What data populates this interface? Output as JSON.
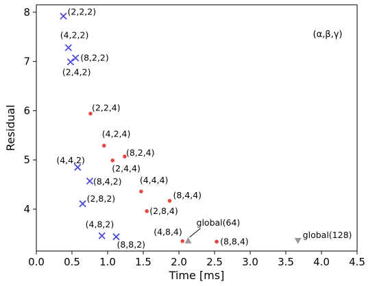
{
  "chart_data": {
    "type": "scatter",
    "title": "",
    "xlabel": "Time [ms]",
    "ylabel": "Residual",
    "xlim": [
      0.0,
      4.5
    ],
    "ylim": [
      3.15,
      8.15
    ],
    "xticks": [
      0.0,
      0.5,
      1.0,
      1.5,
      2.0,
      2.5,
      3.0,
      3.5,
      4.0,
      4.5
    ],
    "xtick_labels": [
      "0.0",
      "0.5",
      "1.0",
      "1.5",
      "2.0",
      "2.5",
      "3.0",
      "3.5",
      "4.0",
      "4.5"
    ],
    "yticks": [
      4,
      5,
      6,
      7,
      8
    ],
    "ytick_labels": [
      "4",
      "5",
      "6",
      "7",
      "8"
    ],
    "grid": false,
    "annotation": "(α,β,γ)",
    "colors": {
      "cross": "#4b4bd8",
      "dot": "#e8473f",
      "triangle": "#999999"
    },
    "series": [
      {
        "marker": "x",
        "points": [
          {
            "x": 0.38,
            "y": 7.92,
            "label": "(2,2,2)"
          },
          {
            "x": 0.45,
            "y": 7.28,
            "label": "(4,2,2)"
          },
          {
            "x": 0.55,
            "y": 7.07,
            "label": "(8,2,2)"
          },
          {
            "x": 0.48,
            "y": 6.99,
            "label": "(2,4,2)"
          },
          {
            "x": 0.58,
            "y": 4.85,
            "label": "(4,4,2)"
          },
          {
            "x": 0.75,
            "y": 4.57,
            "label": "(8,4,2)"
          },
          {
            "x": 0.65,
            "y": 4.11,
            "label": "(2,8,2)"
          },
          {
            "x": 0.92,
            "y": 3.46,
            "label": "(4,8,2)"
          },
          {
            "x": 1.12,
            "y": 3.44,
            "label": "(8,8,2)"
          }
        ]
      },
      {
        "marker": "dot",
        "points": [
          {
            "x": 0.76,
            "y": 5.94,
            "label": "(2,2,4)"
          },
          {
            "x": 0.95,
            "y": 5.29,
            "label": "(4,2,4)"
          },
          {
            "x": 1.24,
            "y": 5.07,
            "label": "(8,2,4)"
          },
          {
            "x": 1.07,
            "y": 4.99,
            "label": "(2,4,4)"
          },
          {
            "x": 1.47,
            "y": 4.36,
            "label": "(4,4,4)"
          },
          {
            "x": 1.87,
            "y": 4.17,
            "label": "(8,4,4)"
          },
          {
            "x": 1.55,
            "y": 3.96,
            "label": "(2,8,4)"
          },
          {
            "x": 2.05,
            "y": 3.35,
            "label": "(4,8,4)"
          },
          {
            "x": 2.53,
            "y": 3.34,
            "label": "(8,8,4)"
          }
        ]
      },
      {
        "marker": "triangle",
        "points": [
          {
            "x": 2.13,
            "y": 3.36,
            "label": "global(64)",
            "direction": "up"
          },
          {
            "x": 3.67,
            "y": 3.36,
            "label": "global(128)",
            "direction": "down"
          }
        ]
      }
    ]
  }
}
